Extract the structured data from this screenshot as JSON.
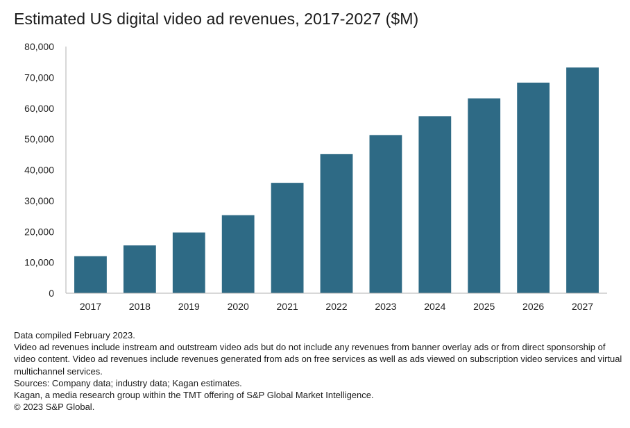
{
  "chart_data": {
    "type": "bar",
    "title": "Estimated US digital video ad revenues, 2017-2027 ($M)",
    "categories": [
      "2017",
      "2018",
      "2019",
      "2020",
      "2021",
      "2022",
      "2023",
      "2024",
      "2025",
      "2026",
      "2027"
    ],
    "values": [
      12000,
      15500,
      19700,
      25300,
      35800,
      45100,
      51300,
      57400,
      63200,
      68300,
      73200
    ],
    "yticks": [
      "0",
      "10,000",
      "20,000",
      "30,000",
      "40,000",
      "50,000",
      "60,000",
      "70,000",
      "80,000"
    ],
    "ylim": [
      0,
      80000
    ],
    "bar_color": "#2e6a85",
    "grid": false,
    "legend": "none"
  },
  "notes": {
    "compiled": "Data compiled February 2023.",
    "definition": "Video ad revenues include instream and outstream video ads but do not include any revenues from banner overlay ads or from direct sponsorship of video content. Video ad revenues include revenues generated from ads on free services as well as ads viewed on subscription video services and virtual multichannel services.",
    "sources": "Sources: Company data; industry data; Kagan estimates.",
    "kagan": "Kagan, a media research group within the TMT offering of S&P Global Market Intelligence.",
    "copyright": "© 2023 S&P Global."
  }
}
